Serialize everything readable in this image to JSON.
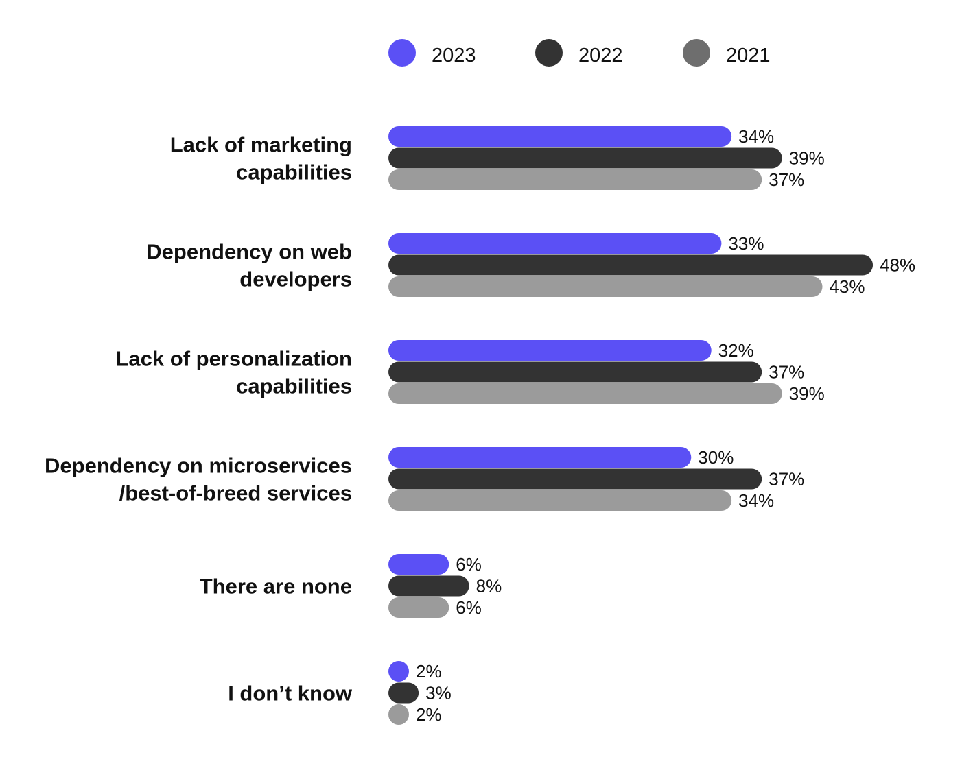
{
  "chart_data": {
    "type": "bar",
    "orientation": "horizontal",
    "title": "",
    "xlabel": "",
    "ylabel": "",
    "xlim": [
      0,
      50
    ],
    "grid": false,
    "legend_position": "top",
    "categories": [
      [
        "Lack of marketing",
        "capabilities"
      ],
      [
        "Dependency on web",
        "developers"
      ],
      [
        "Lack of personalization",
        "capabilities"
      ],
      [
        "Dependency on microservices",
        "/best-of-breed services"
      ],
      [
        "There are none"
      ],
      [
        "I don’t know"
      ]
    ],
    "series": [
      {
        "name": "2023",
        "color": "#5b50f5",
        "values": [
          34,
          33,
          32,
          30,
          6,
          2
        ],
        "labels": [
          "34%",
          "33%",
          "32%",
          "30%",
          "6%",
          "2%"
        ]
      },
      {
        "name": "2022",
        "color": "#333333",
        "values": [
          39,
          48,
          37,
          37,
          8,
          3
        ],
        "labels": [
          "39%",
          "48%",
          "37%",
          "37%",
          "8%",
          "3%"
        ]
      },
      {
        "name": "2021",
        "color": "#9b9b9b",
        "values": [
          37,
          43,
          39,
          34,
          6,
          2
        ],
        "labels": [
          "37%",
          "43%",
          "39%",
          "34%",
          "6%",
          "2%"
        ]
      }
    ],
    "legend_marker_colors": [
      "#5b50f5",
      "#333333",
      "#6e6e6e"
    ]
  }
}
